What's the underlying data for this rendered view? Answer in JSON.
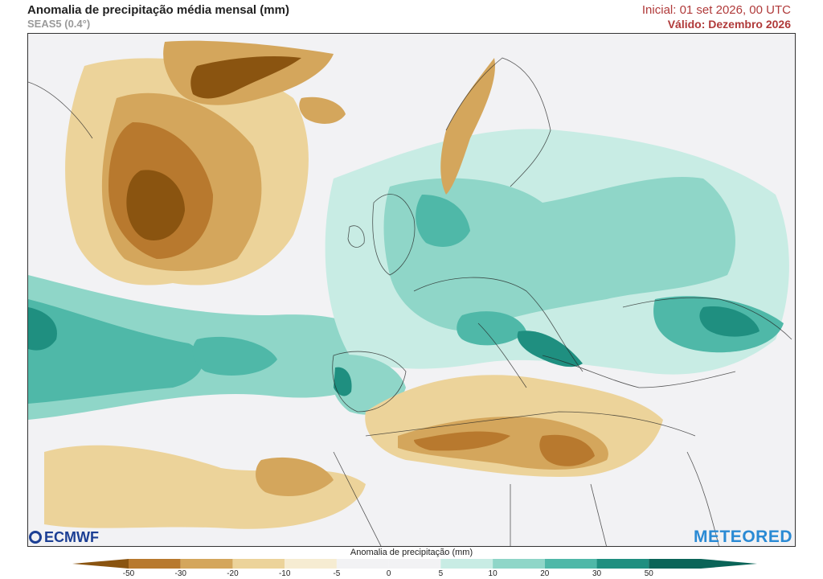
{
  "header": {
    "title": "Anomalia de precipitação média mensal (mm)",
    "subtitle": "SEAS5 (0.4°)",
    "initial": "Inicial: 01 set 2026, 00 UTC",
    "valid": "Válido: Dezembro 2026"
  },
  "logos": {
    "left": "ECMWF",
    "right": "METEORED"
  },
  "colorbar": {
    "label": "Anomalia de precipitação (mm)",
    "ticks": [
      "-50",
      "-30",
      "-20",
      "-10",
      "-5",
      "0",
      "5",
      "10",
      "20",
      "30",
      "50"
    ],
    "colors": [
      "#8a5410",
      "#b8792e",
      "#d4a65c",
      "#ecd39a",
      "#f6ecd2",
      "#f2f2f4",
      "#f2f2f4",
      "#c8ece4",
      "#8fd6c8",
      "#4fb8a8",
      "#1f8f80",
      "#0a6458"
    ]
  }
}
